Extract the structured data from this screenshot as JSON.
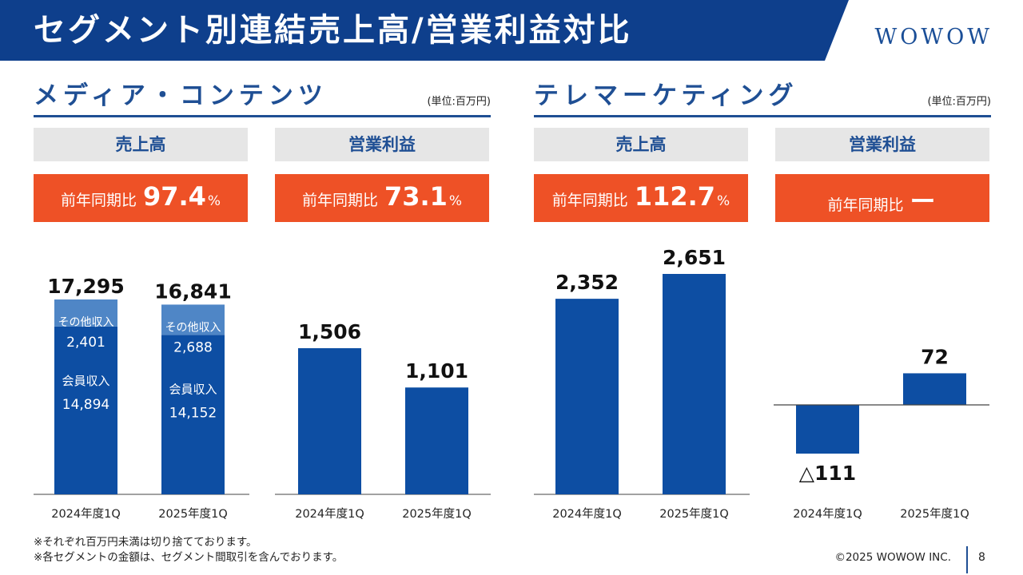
{
  "header": {
    "title": "セグメント別連結売上高/営業利益対比",
    "logo_text": "WOWOW",
    "band_color": "#0e3f8c"
  },
  "segments": [
    {
      "title": "メディア・コンテンツ",
      "unit": "(単位:百万円)",
      "metrics": [
        {
          "head": "売上高",
          "ratio_label": "前年同期比",
          "ratio_value": "97.4",
          "ratio_suffix": "%"
        },
        {
          "head": "営業利益",
          "ratio_label": "前年同期比",
          "ratio_value": "73.1",
          "ratio_suffix": "%"
        }
      ]
    },
    {
      "title": "テレマーケティング",
      "unit": "(単位:百万円)",
      "metrics": [
        {
          "head": "売上高",
          "ratio_label": "前年同期比",
          "ratio_value": "112.7",
          "ratio_suffix": "%"
        },
        {
          "head": "営業利益",
          "ratio_label": "前年同期比",
          "ratio_value": "ー",
          "ratio_suffix": ""
        }
      ]
    }
  ],
  "colors": {
    "primary_bar": "#0d4ea3",
    "secondary_bar": "#4f86c6",
    "accent_box": "#ee5126",
    "head_bg": "#e6e6e6",
    "title_blue": "#1f4f94"
  },
  "chart_data": [
    {
      "type": "bar",
      "stacked": true,
      "categories": [
        "2024年度1Q",
        "2025年度1Q"
      ],
      "totals": [
        17295,
        16841
      ],
      "total_labels": [
        "17,295",
        "16,841"
      ],
      "series": [
        {
          "name": "会員収入",
          "values": [
            14894,
            14152
          ],
          "labels": [
            "14,894",
            "14,152"
          ]
        },
        {
          "name": "その他収入",
          "values": [
            2401,
            2688
          ],
          "labels": [
            "2,401",
            "2,688"
          ]
        }
      ]
    },
    {
      "type": "bar",
      "categories": [
        "2024年度1Q",
        "2025年度1Q"
      ],
      "values": [
        1506,
        1101
      ],
      "value_labels": [
        "1,506",
        "1,101"
      ]
    },
    {
      "type": "bar",
      "categories": [
        "2024年度1Q",
        "2025年度1Q"
      ],
      "values": [
        2352,
        2651
      ],
      "value_labels": [
        "2,352",
        "2,651"
      ]
    },
    {
      "type": "bar",
      "categories": [
        "2024年度1Q",
        "2025年度1Q"
      ],
      "values": [
        -111,
        72
      ],
      "value_labels": [
        "△111",
        "72"
      ]
    }
  ],
  "footnotes": [
    "※それぞれ百万円未満は切り捨てております。",
    "※各セグメントの金額は、セグメント間取引を含んでおります。"
  ],
  "footer": {
    "copyright": "©2025 WOWOW INC.",
    "page_number": "8"
  }
}
